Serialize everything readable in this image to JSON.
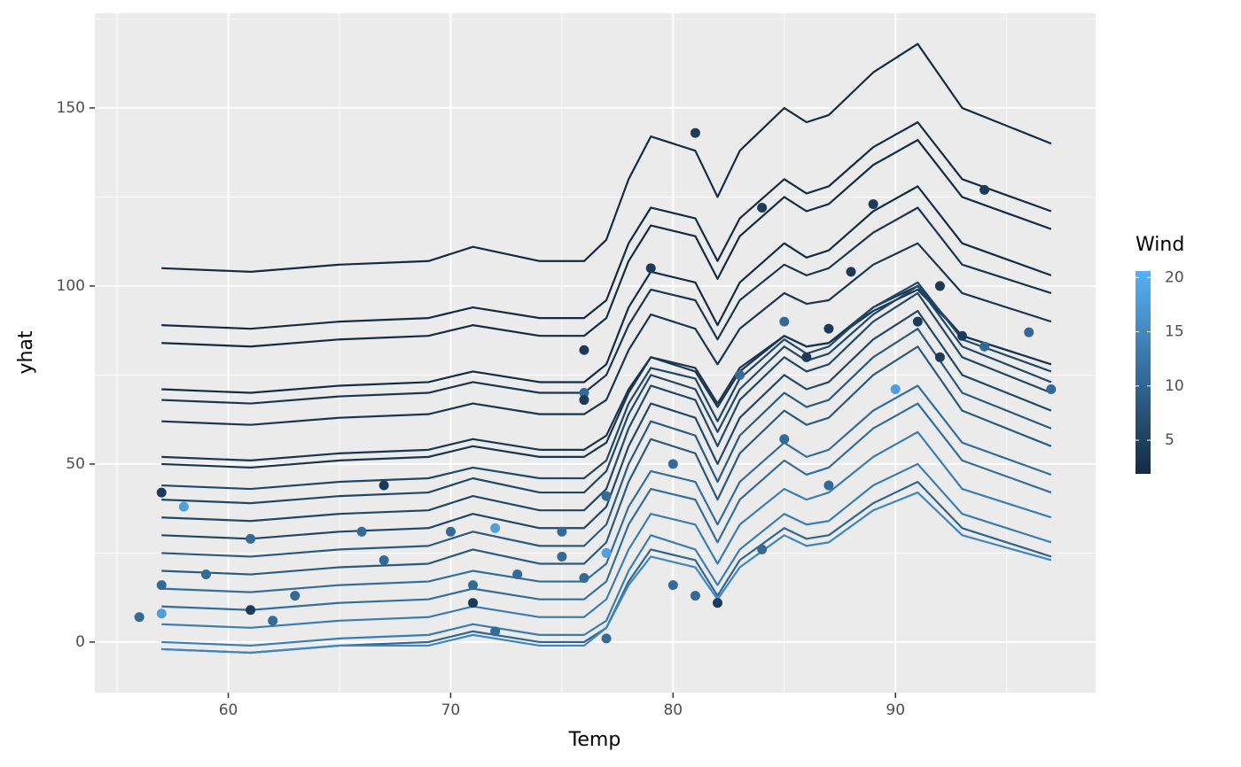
{
  "chart_data": {
    "type": "line",
    "x_label": "Temp",
    "y_label": "yhat",
    "x": [
      57,
      61,
      65,
      69,
      71,
      74,
      76,
      77,
      78,
      79,
      81,
      82,
      83,
      85,
      86,
      87,
      89,
      91,
      93,
      97
    ],
    "series": [
      {
        "color": "#132B43",
        "values": [
          105,
          104,
          106,
          107,
          111,
          107,
          107,
          113,
          130,
          142,
          138,
          125,
          138,
          150,
          146,
          148,
          160,
          168,
          150,
          140
        ]
      },
      {
        "color": "#132B43",
        "values": [
          89,
          88,
          90,
          91,
          94,
          91,
          91,
          96,
          112,
          122,
          119,
          107,
          119,
          130,
          126,
          128,
          139,
          146,
          130,
          121
        ]
      },
      {
        "color": "#132B43",
        "values": [
          84,
          83,
          85,
          86,
          89,
          86,
          86,
          91,
          107,
          117,
          114,
          102,
          114,
          125,
          121,
          123,
          134,
          141,
          125,
          116
        ]
      },
      {
        "color": "#132B43",
        "values": [
          71,
          70,
          72,
          73,
          76,
          73,
          73,
          78,
          94,
          104,
          101,
          89,
          101,
          112,
          108,
          110,
          121,
          128,
          112,
          103
        ]
      },
      {
        "color": "#1a3550",
        "values": [
          68,
          67,
          69,
          70,
          73,
          70,
          70,
          75,
          89,
          99,
          96,
          85,
          96,
          106,
          103,
          105,
          115,
          122,
          106,
          98
        ]
      },
      {
        "color": "#1a3550",
        "values": [
          62,
          61,
          63,
          64,
          67,
          64,
          64,
          68,
          82,
          92,
          88,
          78,
          88,
          98,
          95,
          96,
          106,
          112,
          98,
          90
        ]
      },
      {
        "color": "#1a3550",
        "values": [
          52,
          51,
          53,
          54,
          57,
          54,
          54,
          58,
          71,
          80,
          77,
          67,
          77,
          86,
          83,
          84,
          93,
          99,
          86,
          78
        ]
      },
      {
        "color": "#1a3550",
        "values": [
          50,
          49,
          51,
          52,
          55,
          52,
          52,
          56,
          70,
          80,
          76,
          66,
          76,
          86,
          83,
          84,
          94,
          100,
          86,
          78
        ]
      },
      {
        "color": "#224766",
        "values": [
          44,
          43,
          45,
          46,
          49,
          46,
          46,
          51,
          67,
          77,
          74,
          62,
          74,
          85,
          81,
          83,
          94,
          101,
          85,
          76
        ]
      },
      {
        "color": "#224766",
        "values": [
          40,
          39,
          41,
          42,
          46,
          42,
          42,
          48,
          64,
          75,
          71,
          59,
          71,
          83,
          79,
          81,
          92,
          100,
          83,
          73
        ]
      },
      {
        "color": "#224766",
        "values": [
          35,
          34,
          36,
          37,
          41,
          37,
          37,
          43,
          60,
          72,
          68,
          55,
          68,
          80,
          76,
          78,
          90,
          98,
          80,
          70
        ]
      },
      {
        "color": "#224766",
        "values": [
          30,
          29,
          31,
          32,
          36,
          32,
          32,
          38,
          55,
          67,
          63,
          50,
          63,
          75,
          71,
          73,
          85,
          93,
          75,
          65
        ]
      },
      {
        "color": "#2a5a80",
        "values": [
          25,
          24,
          26,
          27,
          31,
          27,
          27,
          33,
          50,
          62,
          58,
          45,
          58,
          70,
          66,
          68,
          80,
          88,
          70,
          60
        ]
      },
      {
        "color": "#2a5a80",
        "values": [
          20,
          19,
          21,
          22,
          26,
          22,
          22,
          28,
          45,
          57,
          53,
          40,
          53,
          65,
          61,
          63,
          75,
          83,
          65,
          55
        ]
      },
      {
        "color": "#336d9b",
        "values": [
          15,
          14,
          16,
          17,
          20,
          17,
          17,
          22,
          38,
          48,
          45,
          33,
          45,
          56,
          52,
          54,
          65,
          72,
          56,
          47
        ]
      },
      {
        "color": "#336d9b",
        "values": [
          10,
          9,
          11,
          12,
          15,
          12,
          12,
          17,
          33,
          43,
          40,
          28,
          40,
          51,
          47,
          49,
          60,
          67,
          51,
          42
        ]
      },
      {
        "color": "#3a7db2",
        "values": [
          5,
          4,
          6,
          7,
          10,
          7,
          7,
          12,
          26,
          36,
          33,
          22,
          33,
          43,
          40,
          42,
          52,
          59,
          43,
          35
        ]
      },
      {
        "color": "#3a7db2",
        "values": [
          0,
          -1,
          1,
          2,
          5,
          2,
          2,
          6,
          20,
          30,
          26,
          16,
          26,
          36,
          33,
          34,
          44,
          50,
          36,
          28
        ]
      },
      {
        "color": "#2f6590",
        "values": [
          -2,
          -3,
          -1,
          0,
          3,
          0,
          0,
          4,
          17,
          26,
          23,
          13,
          23,
          32,
          29,
          30,
          39,
          45,
          32,
          24
        ]
      },
      {
        "color": "#3f86c0",
        "values": [
          -2,
          -3,
          -1,
          -1,
          2,
          -1,
          -1,
          4,
          16,
          24,
          21,
          12,
          21,
          30,
          27,
          28,
          37,
          42,
          30,
          23
        ]
      }
    ],
    "points": {
      "x": [
        56,
        57,
        57,
        57,
        58,
        59,
        61,
        61,
        62,
        63,
        66,
        67,
        67,
        70,
        71,
        71,
        72,
        72,
        73,
        75,
        75,
        76,
        76,
        76,
        76,
        77,
        77,
        77,
        79,
        80,
        80,
        81,
        81,
        82,
        83,
        84,
        84,
        85,
        85,
        86,
        87,
        87,
        88,
        89,
        90,
        91,
        92,
        92,
        93,
        94,
        94,
        96,
        97
      ],
      "y": [
        7,
        42,
        16,
        8,
        38,
        19,
        29,
        9,
        6,
        13,
        31,
        44,
        23,
        31,
        16,
        11,
        32,
        3,
        19,
        31,
        24,
        82,
        70,
        68,
        18,
        41,
        25,
        1,
        105,
        50,
        16,
        143,
        13,
        11,
        75,
        122,
        26,
        90,
        57,
        80,
        88,
        44,
        104,
        123,
        71,
        90,
        100,
        80,
        86,
        127,
        83,
        87,
        71
      ],
      "colors": [
        "#336a98",
        "#1d3b58",
        "#336a98",
        "#4f9fdf",
        "#4f9fdf",
        "#336a98",
        "#336a98",
        "#1d3b58",
        "#336a98",
        "#336a98",
        "#336a98",
        "#1d3b58",
        "#336a98",
        "#336a98",
        "#336a98",
        "#1d3b58",
        "#4f9fdf",
        "#336a98",
        "#336a98",
        "#336a98",
        "#336a98",
        "#1d3b58",
        "#336a98",
        "#1d3b58",
        "#336a98",
        "#336a98",
        "#4f9fdf",
        "#336a98",
        "#1d3b58",
        "#336a98",
        "#336a98",
        "#1d3b58",
        "#336a98",
        "#1d3b58",
        "#336a98",
        "#1d3b58",
        "#336a98",
        "#336a98",
        "#336a98",
        "#1d3b58",
        "#1d3b58",
        "#336a98",
        "#1d3b58",
        "#1d3b58",
        "#4f9fdf",
        "#1d3b58",
        "#1d3b58",
        "#1d3b58",
        "#1d3b58",
        "#1d3b58",
        "#336a98",
        "#336a98",
        "#336a98"
      ]
    },
    "xlim": [
      54,
      99
    ],
    "ylim": [
      -14.2,
      176.6
    ],
    "xticks": [
      60,
      70,
      80,
      90
    ],
    "yticks": [
      0,
      50,
      100,
      150
    ],
    "xminor": [
      55,
      65,
      75,
      85,
      95
    ],
    "yminor": [
      25,
      75,
      125,
      175
    ],
    "grid": true,
    "legend": {
      "title": "Wind",
      "lim": [
        1.9,
        20.6
      ],
      "ticks": [
        5,
        10,
        15,
        20
      ],
      "colors": [
        "#132B43",
        "#56B1F7"
      ],
      "position": "right"
    }
  }
}
